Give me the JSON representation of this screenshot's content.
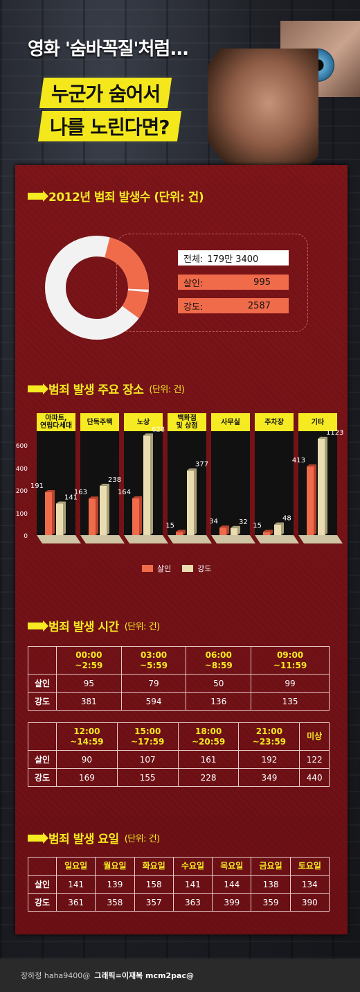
{
  "header": {
    "title": "영화 '숨바꼭질'처럼...",
    "band1": "누군가 숨어서",
    "band2": "나를 노린다면?"
  },
  "sections": {
    "s1": "2012년 범죄 발생수 (단위: 건)",
    "s2": "범죄 발생 주요 장소",
    "s2_unit": "(단위: 건)",
    "s3": "범죄 발생 시간",
    "s3_unit": "(단위: 건)",
    "s4": "범죄 발생 요일",
    "s4_unit": "(단위: 건)"
  },
  "totals": {
    "total_label": "전체:",
    "total_value": "179만 3400",
    "murder_label": "살인:",
    "murder_value": "995",
    "robbery_label": "강도:",
    "robbery_value": "2587"
  },
  "footer": {
    "reporter": "장하정 haha9400@",
    "graphic": "그래픽=이재복 mcm2pac@"
  },
  "colors": {
    "murder": "#f06b4a",
    "robbery": "#e8dcb0",
    "accent": "#f6ea22",
    "panel": "#7a1418"
  },
  "chart_data": [
    {
      "type": "pie",
      "title": "2012년 범죄 발생수 (단위: 건)",
      "total": 1793400,
      "slices": [
        {
          "name": "살인",
          "value": 995
        },
        {
          "name": "강도",
          "value": 2587
        }
      ]
    },
    {
      "type": "bar",
      "title": "범죄 발생 주요 장소",
      "categories": [
        "아파트,\n연립다세대",
        "단독주택",
        "노상",
        "백화점\n및 상점",
        "사무실",
        "주차장",
        "기타"
      ],
      "yticks": [
        "0",
        "100",
        "200",
        "400",
        "600"
      ],
      "ytick_values": [
        0,
        100,
        200,
        400,
        600
      ],
      "series": [
        {
          "name": "살인",
          "values": [
            191,
            163,
            164,
            15,
            34,
            15,
            413
          ]
        },
        {
          "name": "강도",
          "values": [
            141,
            238,
            628,
            377,
            32,
            48,
            1123
          ]
        }
      ]
    },
    {
      "type": "table",
      "title": "범죄 발생 시간",
      "row_headers": [
        "살인",
        "강도"
      ],
      "table1": {
        "columns": [
          "00:00\n~2:59",
          "03:00\n~5:59",
          "06:00\n~8:59",
          "09:00\n~11:59"
        ],
        "rows": [
          [
            "95",
            "79",
            "50",
            "99"
          ],
          [
            "381",
            "594",
            "136",
            "135"
          ]
        ]
      },
      "table2": {
        "columns": [
          "12:00\n~14:59",
          "15:00\n~17:59",
          "18:00\n~20:59",
          "21:00\n~23:59",
          "미상"
        ],
        "rows": [
          [
            "90",
            "107",
            "161",
            "192",
            "122"
          ],
          [
            "169",
            "155",
            "228",
            "349",
            "440"
          ]
        ]
      }
    },
    {
      "type": "table",
      "title": "범죄 발생 요일",
      "columns": [
        "일요일",
        "월요일",
        "화요일",
        "수요일",
        "목요일",
        "금요일",
        "토요일"
      ],
      "row_headers": [
        "살인",
        "강도"
      ],
      "rows": [
        [
          "141",
          "139",
          "158",
          "141",
          "144",
          "138",
          "134"
        ],
        [
          "361",
          "358",
          "357",
          "363",
          "399",
          "359",
          "390"
        ]
      ]
    }
  ]
}
